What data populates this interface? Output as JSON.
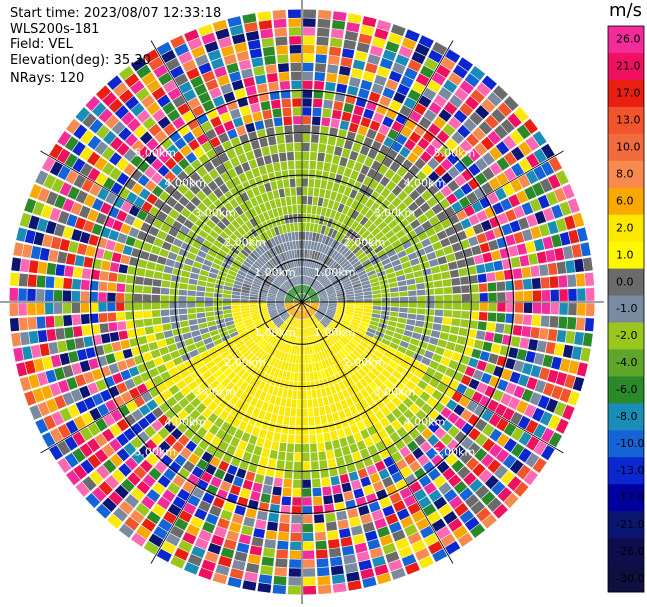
{
  "header": {
    "start_time": "Start time: 2023/08/07 12:33:18",
    "instrument": "WLS200s-181",
    "field": "Field: VEL",
    "elevation": "Elevation(deg): 35.30",
    "nrays": "NRays: 120"
  },
  "colorbar": {
    "unit": "m/s",
    "levels": [
      {
        "label": "26.0",
        "color": "#f42b9a"
      },
      {
        "label": "21.0",
        "color": "#f01060"
      },
      {
        "label": "17.0",
        "color": "#ea1e12"
      },
      {
        "label": "13.0",
        "color": "#f2542c"
      },
      {
        "label": "10.0",
        "color": "#f16c3c"
      },
      {
        "label": "8.0",
        "color": "#f88a50"
      },
      {
        "label": "6.0",
        "color": "#f9a800"
      },
      {
        "label": "2.0",
        "color": "#fde800"
      },
      {
        "label": "1.0",
        "color": "#fff700"
      },
      {
        "label": "0.0",
        "color": "#6b6b6b"
      },
      {
        "label": "-1.0",
        "color": "#7a8aa0"
      },
      {
        "label": "-2.0",
        "color": "#9ac71e"
      },
      {
        "label": "-4.0",
        "color": "#5ea52a"
      },
      {
        "label": "-6.0",
        "color": "#2a8a2a"
      },
      {
        "label": "-8.0",
        "color": "#1a8cb8"
      },
      {
        "label": "-10.0",
        "color": "#1464d8"
      },
      {
        "label": "-13.0",
        "color": "#0b28d0"
      },
      {
        "label": "-17.0",
        "color": "#0000a0"
      },
      {
        "label": "-21.0",
        "color": "#0a1672"
      },
      {
        "label": "-26.0",
        "color": "#0e0e4e"
      },
      {
        "label": "-30.0",
        "color": "#101040"
      }
    ]
  },
  "chart_data": {
    "type": "heatmap",
    "projection": "polar PPI",
    "nrays": 120,
    "max_range_km": 7.0,
    "ring_labels": [
      "1.00km",
      "2.00km",
      "3.00km",
      "4.00km",
      "5.00km"
    ],
    "range_rings_km": [
      1,
      2,
      3,
      4,
      5
    ],
    "spokes_deg": [
      0,
      30,
      60,
      90,
      120,
      150,
      180,
      210,
      240,
      270,
      300,
      330
    ],
    "field": "VEL",
    "units": "m/s",
    "vmin": -30.0,
    "vmax": 26.0,
    "pattern": {
      "near_center_km": 0.3,
      "coherent_outer_km": 4.1,
      "north_sector_value_mps": -2.0,
      "south_sector_value_mps": 2.0,
      "gray_zone_value_mps": 0.0,
      "noise_beyond_km": 4.1
    }
  }
}
